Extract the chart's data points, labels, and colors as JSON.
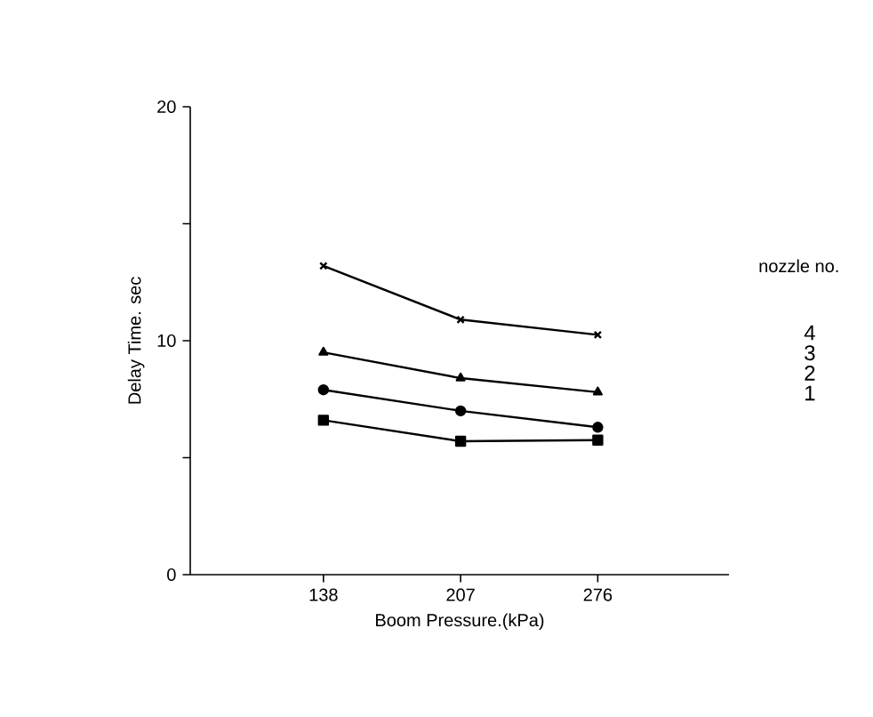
{
  "chart_data": {
    "type": "line",
    "xlabel": "Boom Pressure.(kPa)",
    "ylabel": "Delay Time. sec",
    "legend_title": "nozzle no.",
    "x": [
      138,
      207,
      276
    ],
    "xlim": [
      71,
      342
    ],
    "xticks": [
      138,
      207,
      276
    ],
    "ylim": [
      0,
      20
    ],
    "yticks": [
      0,
      {
        "value": 5,
        "label": null
      },
      10,
      {
        "value": 15,
        "label": null
      },
      20
    ],
    "series": [
      {
        "name": "1",
        "color": "#000000",
        "marker": "square",
        "values": [
          6.6,
          5.7,
          5.75
        ]
      },
      {
        "name": "2",
        "color": "#000000",
        "marker": "circle",
        "values": [
          7.9,
          7.0,
          6.3
        ]
      },
      {
        "name": "3",
        "color": "#000000",
        "marker": "triangle",
        "values": [
          9.5,
          8.4,
          7.8
        ]
      },
      {
        "name": "4",
        "color": "#000000",
        "marker": "cross",
        "values": [
          13.2,
          10.9,
          10.25
        ]
      }
    ]
  }
}
